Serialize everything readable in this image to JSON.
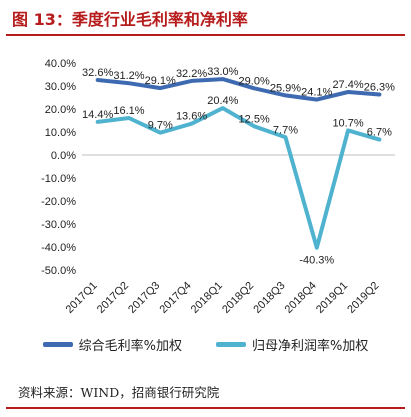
{
  "title": "图 13：季度行业毛利率和净利率",
  "source": "资料来源：WIND，招商银行研究院",
  "colors": {
    "title": "#b71c1c",
    "series1": "#3d6ab0",
    "series2": "#4fb3d0"
  },
  "chart_data": {
    "type": "line",
    "categories": [
      "2017Q1",
      "2017Q2",
      "2017Q3",
      "2017Q4",
      "2018Q1",
      "2018Q2",
      "2018Q3",
      "2018Q4",
      "2019Q1",
      "2019Q2"
    ],
    "series": [
      {
        "name": "综合毛利率%加权",
        "values": [
          32.6,
          31.2,
          29.1,
          32.2,
          33.0,
          29.0,
          25.9,
          24.1,
          27.4,
          26.3
        ],
        "labels": [
          "32.6%",
          "31.2%",
          "29.1%",
          "32.2%",
          "33.0%",
          "29.0%",
          "25.9%",
          "24.1%",
          "27.4%",
          "26.3%"
        ]
      },
      {
        "name": "归母净利润率%加权",
        "values": [
          14.4,
          16.1,
          9.7,
          13.6,
          20.4,
          12.5,
          7.7,
          -40.3,
          10.7,
          6.7
        ],
        "labels": [
          "14.4%",
          "16.1%",
          "9.7%",
          "13.6%",
          "20.4%",
          "12.5%",
          "7.7%",
          "-40.3%",
          "10.7%",
          "6.7%"
        ]
      }
    ],
    "ylim": [
      -50,
      40
    ],
    "yticks": [
      40,
      30,
      20,
      10,
      0,
      -10,
      -20,
      -30,
      -40,
      -50
    ],
    "ytick_labels": [
      "40.0%",
      "30.0%",
      "20.0%",
      "10.0%",
      "0.0%",
      "-10.0%",
      "-20.0%",
      "-30.0%",
      "-40.0%",
      "-50.0%"
    ],
    "grid": false,
    "legend": "bottom"
  }
}
